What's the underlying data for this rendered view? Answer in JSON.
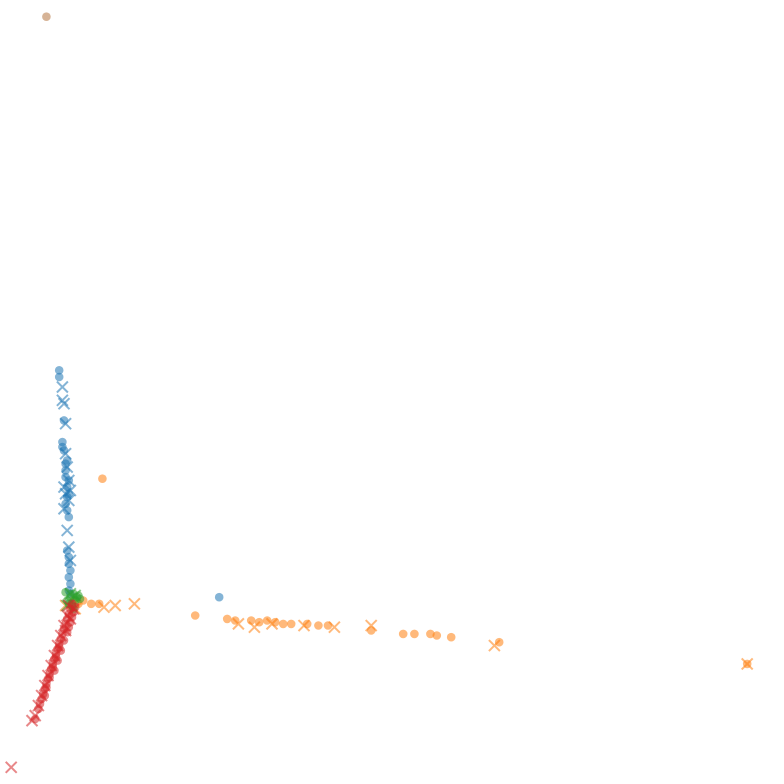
{
  "chart_data": {
    "type": "scatter",
    "title": "",
    "xlabel": "",
    "ylabel": "",
    "axes_visible": false,
    "grid": false,
    "legend": "none",
    "xlim": [
      -0.37,
      4.53
    ],
    "ylim": [
      -1.1,
      3.6
    ],
    "marker_opacity": 0.55,
    "series": [
      {
        "color": "#1f77b4",
        "markers": {
          "circle": [
            [
              0.0,
              1.38
            ],
            [
              0.0,
              1.34
            ],
            [
              0.03,
              1.08
            ],
            [
              0.02,
              0.95
            ],
            [
              0.02,
              0.92
            ],
            [
              0.03,
              0.9
            ],
            [
              0.04,
              0.82
            ],
            [
              0.04,
              0.78
            ],
            [
              0.04,
              0.74
            ],
            [
              0.05,
              0.68
            ],
            [
              0.05,
              0.62
            ],
            [
              0.04,
              0.58
            ],
            [
              0.05,
              0.54
            ],
            [
              0.06,
              0.5
            ],
            [
              0.05,
              0.3
            ],
            [
              0.06,
              0.26
            ],
            [
              0.06,
              0.22
            ],
            [
              0.07,
              0.18
            ],
            [
              0.06,
              0.14
            ],
            [
              0.07,
              0.1
            ],
            [
              0.06,
              0.06
            ],
            [
              0.07,
              0.04
            ],
            [
              1.0,
              0.02
            ],
            [
              0.05,
              0.84
            ],
            [
              0.06,
              0.72
            ],
            [
              0.06,
              0.64
            ]
          ],
          "cross": [
            [
              0.02,
              1.28
            ],
            [
              0.02,
              1.2
            ],
            [
              0.03,
              1.18
            ],
            [
              0.04,
              1.06
            ],
            [
              0.04,
              0.88
            ],
            [
              0.05,
              0.8
            ],
            [
              0.06,
              0.72
            ],
            [
              0.03,
              0.68
            ],
            [
              0.07,
              0.66
            ],
            [
              0.04,
              0.64
            ],
            [
              0.06,
              0.6
            ],
            [
              0.03,
              0.55
            ],
            [
              0.05,
              0.42
            ],
            [
              0.06,
              0.32
            ],
            [
              0.07,
              0.24
            ]
          ]
        }
      },
      {
        "color": "#ff7f0e",
        "markers": {
          "circle": [
            [
              0.27,
              0.73
            ],
            [
              0.09,
              0.0
            ],
            [
              0.12,
              -0.02
            ],
            [
              0.15,
              0.0
            ],
            [
              0.2,
              -0.02
            ],
            [
              0.25,
              -0.02
            ],
            [
              0.85,
              -0.09
            ],
            [
              1.05,
              -0.11
            ],
            [
              1.1,
              -0.12
            ],
            [
              1.2,
              -0.12
            ],
            [
              1.25,
              -0.13
            ],
            [
              1.3,
              -0.12
            ],
            [
              1.35,
              -0.13
            ],
            [
              1.4,
              -0.14
            ],
            [
              1.45,
              -0.14
            ],
            [
              1.55,
              -0.14
            ],
            [
              1.62,
              -0.15
            ],
            [
              1.68,
              -0.15
            ],
            [
              1.95,
              -0.18
            ],
            [
              2.15,
              -0.2
            ],
            [
              2.22,
              -0.2
            ],
            [
              2.32,
              -0.2
            ],
            [
              2.36,
              -0.21
            ],
            [
              2.45,
              -0.22
            ],
            [
              2.75,
              -0.25
            ],
            [
              4.3,
              -0.38
            ]
          ],
          "cross": [
            [
              0.1,
              -0.05
            ],
            [
              0.28,
              -0.04
            ],
            [
              0.35,
              -0.03
            ],
            [
              0.47,
              -0.02
            ],
            [
              0.04,
              -0.03
            ],
            [
              1.12,
              -0.14
            ],
            [
              1.22,
              -0.16
            ],
            [
              1.33,
              -0.14
            ],
            [
              1.53,
              -0.15
            ],
            [
              1.72,
              -0.16
            ],
            [
              1.95,
              -0.15
            ],
            [
              2.72,
              -0.27
            ],
            [
              4.3,
              -0.38
            ]
          ]
        }
      },
      {
        "color": "#2ca02c",
        "markers": {
          "circle": [
            [
              0.05,
              0.0
            ],
            [
              0.07,
              0.02
            ],
            [
              0.09,
              0.04
            ],
            [
              0.06,
              -0.02
            ],
            [
              0.1,
              0.0
            ],
            [
              0.08,
              -0.03
            ],
            [
              0.11,
              0.02
            ],
            [
              0.12,
              0.03
            ],
            [
              0.04,
              0.05
            ],
            [
              0.09,
              -0.05
            ],
            [
              0.13,
              0.01
            ]
          ],
          "cross": [
            [
              0.07,
              0.04
            ],
            [
              0.1,
              0.03
            ],
            [
              0.05,
              -0.03
            ]
          ]
        }
      },
      {
        "color": "#d62728",
        "markers": {
          "circle": [
            [
              0.08,
              -0.02
            ],
            [
              0.07,
              -0.05
            ],
            [
              0.06,
              -0.08
            ],
            [
              0.05,
              -0.11
            ],
            [
              0.04,
              -0.14
            ],
            [
              0.03,
              -0.17
            ],
            [
              0.02,
              -0.2
            ],
            [
              0.01,
              -0.23
            ],
            [
              0.0,
              -0.26
            ],
            [
              -0.01,
              -0.29
            ],
            [
              -0.02,
              -0.32
            ],
            [
              -0.03,
              -0.35
            ],
            [
              -0.04,
              -0.38
            ],
            [
              -0.05,
              -0.41
            ],
            [
              -0.06,
              -0.44
            ],
            [
              -0.07,
              -0.47
            ],
            [
              -0.08,
              -0.5
            ],
            [
              -0.09,
              -0.53
            ],
            [
              -0.1,
              -0.56
            ],
            [
              -0.11,
              -0.59
            ],
            [
              -0.12,
              -0.62
            ],
            [
              -0.13,
              -0.65
            ],
            [
              -0.15,
              -0.71
            ],
            [
              0.1,
              -0.04
            ],
            [
              0.09,
              -0.07
            ],
            [
              0.08,
              -0.1
            ],
            [
              0.07,
              -0.13
            ],
            [
              0.06,
              -0.16
            ],
            [
              0.05,
              -0.19
            ],
            [
              0.03,
              -0.24
            ],
            [
              0.01,
              -0.3
            ],
            [
              -0.01,
              -0.36
            ],
            [
              -0.03,
              -0.42
            ],
            [
              0.0,
              -0.28
            ],
            [
              -0.02,
              -0.34
            ],
            [
              -0.04,
              -0.4
            ],
            [
              -0.06,
              -0.46
            ],
            [
              -0.08,
              -0.52
            ],
            [
              -0.09,
              -0.57
            ]
          ],
          "cross": [
            [
              0.06,
              -0.03
            ],
            [
              0.05,
              -0.09
            ],
            [
              0.03,
              -0.15
            ],
            [
              0.01,
              -0.21
            ],
            [
              -0.01,
              -0.27
            ],
            [
              -0.03,
              -0.33
            ],
            [
              -0.05,
              -0.39
            ],
            [
              -0.07,
              -0.45
            ],
            [
              -0.09,
              -0.51
            ],
            [
              -0.11,
              -0.57
            ],
            [
              -0.13,
              -0.63
            ],
            [
              -0.15,
              -0.69
            ],
            [
              -0.17,
              -0.72
            ],
            [
              0.09,
              -0.05
            ],
            [
              0.07,
              -0.11
            ],
            [
              0.04,
              -0.18
            ],
            [
              -0.3,
              -1.0
            ]
          ]
        }
      },
      {
        "color": "#b5753f",
        "markers": {
          "circle": [
            [
              -0.08,
              3.5
            ]
          ],
          "cross": []
        }
      }
    ]
  }
}
